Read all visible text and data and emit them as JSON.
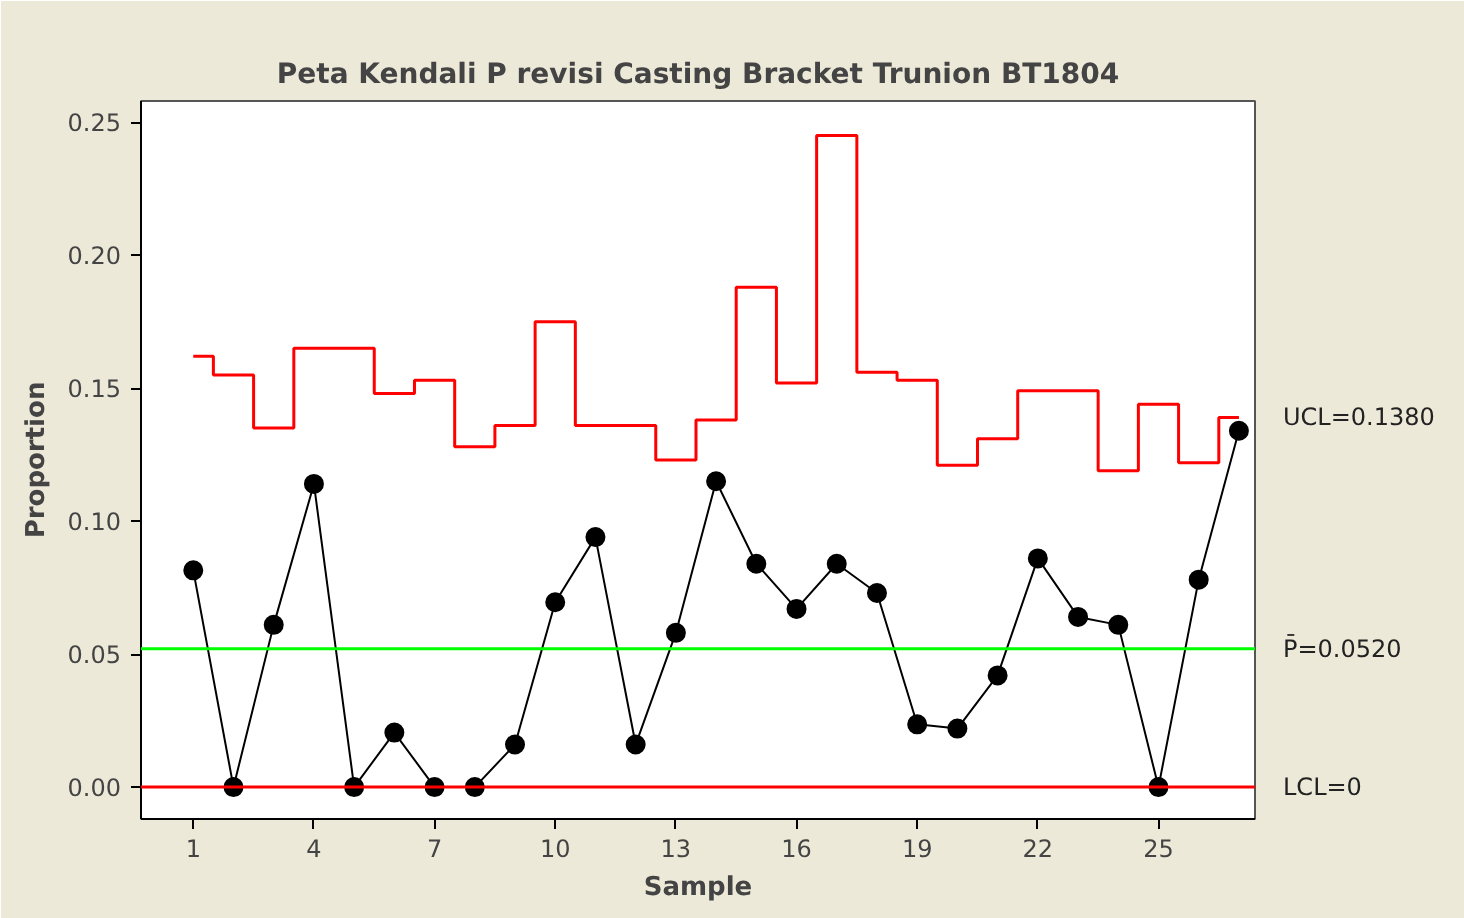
{
  "chart_data": {
    "type": "line",
    "title": "Peta Kendali P revisi Casting Bracket Trunion BT1804",
    "xlabel": "Sample",
    "ylabel": "Proportion",
    "x": [
      1,
      2,
      3,
      4,
      5,
      6,
      7,
      8,
      9,
      10,
      11,
      12,
      13,
      14,
      15,
      16,
      17,
      18,
      19,
      20,
      21,
      22,
      23,
      24,
      25,
      26,
      27
    ],
    "series": [
      {
        "color": "#000000",
        "marker": "circle",
        "values": [
          0.0815,
          0,
          0.061,
          0.114,
          0,
          0.0205,
          0,
          0,
          0.016,
          0.0695,
          0.094,
          0.016,
          0.058,
          0.115,
          0.084,
          0.067,
          0.084,
          0.073,
          0.0236,
          0.022,
          0.042,
          0.086,
          0.064,
          0.061,
          0,
          0.078,
          0.134
        ]
      },
      {
        "type": "step",
        "name": "UCL=0.1380",
        "color": "#ff0000",
        "marker": "none",
        "values": [
          0.162,
          0.155,
          0.135,
          0.165,
          0.165,
          0.148,
          0.153,
          0.128,
          0.136,
          0.175,
          0.136,
          0.136,
          0.123,
          0.138,
          0.188,
          0.152,
          0.245,
          0.156,
          0.153,
          0.121,
          0.131,
          0.149,
          0.149,
          0.119,
          0.144,
          0.122,
          0.139
        ]
      }
    ],
    "ref_lines": [
      {
        "axis": "y",
        "value": 0.052,
        "label": "P̄=0.0520",
        "color": "#00ff00"
      },
      {
        "axis": "y",
        "value": 0,
        "label": "LCL=0",
        "color": "#ff0000"
      }
    ],
    "xlim": [
      -0.3,
      27.4
    ],
    "ylim": [
      -0.012,
      0.258
    ],
    "xticks": [
      1,
      4,
      7,
      10,
      13,
      16,
      19,
      22,
      25
    ],
    "yticks": [
      {
        "value": 0,
        "label": "0.00"
      },
      {
        "value": 0.05,
        "label": "0.05"
      },
      {
        "value": 0.1,
        "label": "0.10"
      },
      {
        "value": 0.15,
        "label": "0.15"
      },
      {
        "value": 0.2,
        "label": "0.20"
      },
      {
        "value": 0.25,
        "label": "0.25"
      }
    ],
    "grid": false,
    "legend": false
  }
}
